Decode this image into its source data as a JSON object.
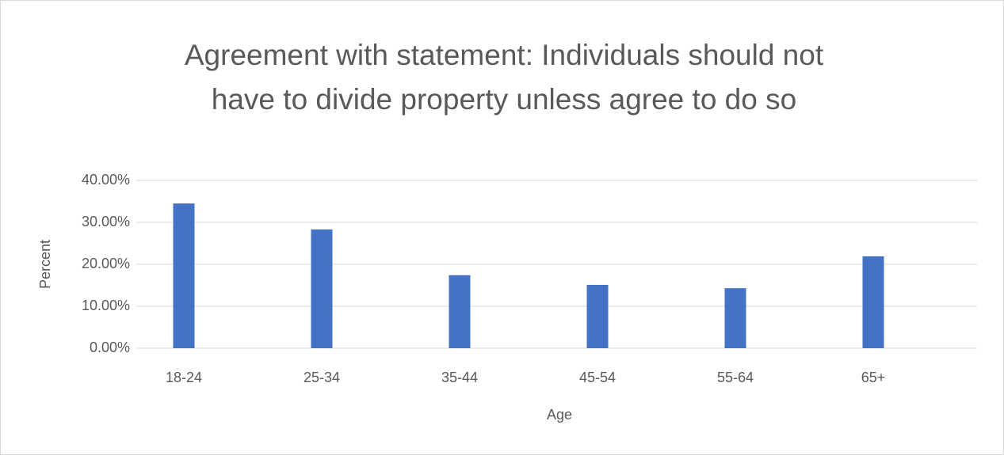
{
  "chart_data": {
    "type": "bar",
    "title": [
      "Agreement with statement: Individuals should not",
      "have to divide property unless agree to do so"
    ],
    "x_label": "Age",
    "y_label": "Percent",
    "categories": [
      "18-24",
      "25-34",
      "35-44",
      "45-54",
      "55-64",
      "65+"
    ],
    "values": [
      34.5,
      28.3,
      17.4,
      15.1,
      14.3,
      21.9
    ],
    "color": "#4472c4",
    "ylim": [
      0,
      40
    ],
    "yticks": [
      {
        "value": 0,
        "label": "0.00%"
      },
      {
        "value": 10,
        "label": "10.00%"
      },
      {
        "value": 20,
        "label": "20.00%"
      },
      {
        "value": 30,
        "label": "30.00%"
      },
      {
        "value": 40,
        "label": "40.00%"
      }
    ],
    "grid": true
  }
}
